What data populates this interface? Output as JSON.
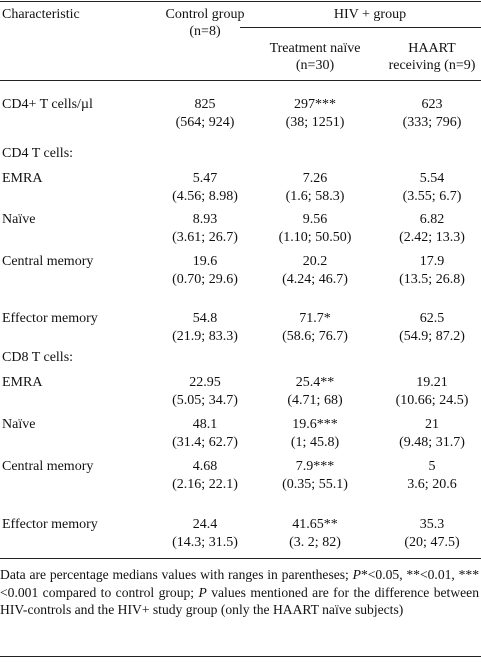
{
  "table": {
    "header": {
      "characteristic": "Characteristic",
      "control": "Control group",
      "control_n": "(n=8)",
      "hiv": "HIV + group",
      "naive": "Treatment naïve",
      "naive_n": "(n=30)",
      "haart": "HAART",
      "haart_n": "receiving (n=9)"
    },
    "rows": [
      {
        "label": "CD4+ T cells/µl",
        "cells": [
          [
            "825",
            "(564; 924)"
          ],
          [
            "297***",
            "(38; 1251)"
          ],
          [
            "623",
            "(333; 796)"
          ]
        ]
      },
      {
        "label": "CD4 T cells:"
      },
      {
        "label": "EMRA",
        "cells": [
          [
            "5.47",
            "(4.56; 8.98)"
          ],
          [
            "7.26",
            "(1.6; 58.3)"
          ],
          [
            "5.54",
            "(3.55; 6.7)"
          ]
        ]
      },
      {
        "label": "Naïve",
        "cells": [
          [
            "8.93",
            "(3.61; 26.7)"
          ],
          [
            "9.56",
            "(1.10; 50.50)"
          ],
          [
            "6.82",
            "(2.42; 13.3)"
          ]
        ]
      },
      {
        "label": "Central memory",
        "cells": [
          [
            "19.6",
            "(0.70; 29.6)"
          ],
          [
            "20.2",
            "(4.24; 46.7)"
          ],
          [
            "17.9",
            "(13.5; 26.8)"
          ]
        ]
      },
      {
        "label": "Effector memory",
        "cells": [
          [
            "54.8",
            "(21.9; 83.3)"
          ],
          [
            "71.7*",
            "(58.6; 76.7)"
          ],
          [
            "62.5",
            "(54.9; 87.2)"
          ]
        ]
      },
      {
        "label": "CD8 T cells:"
      },
      {
        "label": "EMRA",
        "cells": [
          [
            "22.95",
            "(5.05; 34.7)"
          ],
          [
            "25.4**",
            "(4.71; 68)"
          ],
          [
            "19.21",
            "(10.66; 24.5)"
          ]
        ]
      },
      {
        "label": "Naïve",
        "cells": [
          [
            "48.1",
            "(31.4; 62.7)"
          ],
          [
            "19.6***",
            "(1; 45.8)"
          ],
          [
            "21",
            "(9.48; 31.7)"
          ]
        ]
      },
      {
        "label": "Central memory",
        "cells": [
          [
            "4.68",
            "(2.16; 22.1)"
          ],
          [
            "7.9***",
            "(0.35; 55.1)"
          ],
          [
            "5",
            "3.6; 20.6"
          ]
        ]
      },
      {
        "label": "Effector memory",
        "cells": [
          [
            "24.4",
            "(14.3; 31.5)"
          ],
          [
            "41.65**",
            "(3. 2; 82)"
          ],
          [
            "35.3",
            "(20; 47.5)"
          ]
        ]
      }
    ]
  },
  "footnote": [
    "Data are percentage medians values with ranges in parentheses; ",
    "P",
    "*<0.05, **<0.01, ***<0.001 compared to control group; ",
    "P",
    " values mentioned are for the difference between HIV-controls and the HIV+ study group (only the HAART naïve subjects)"
  ]
}
